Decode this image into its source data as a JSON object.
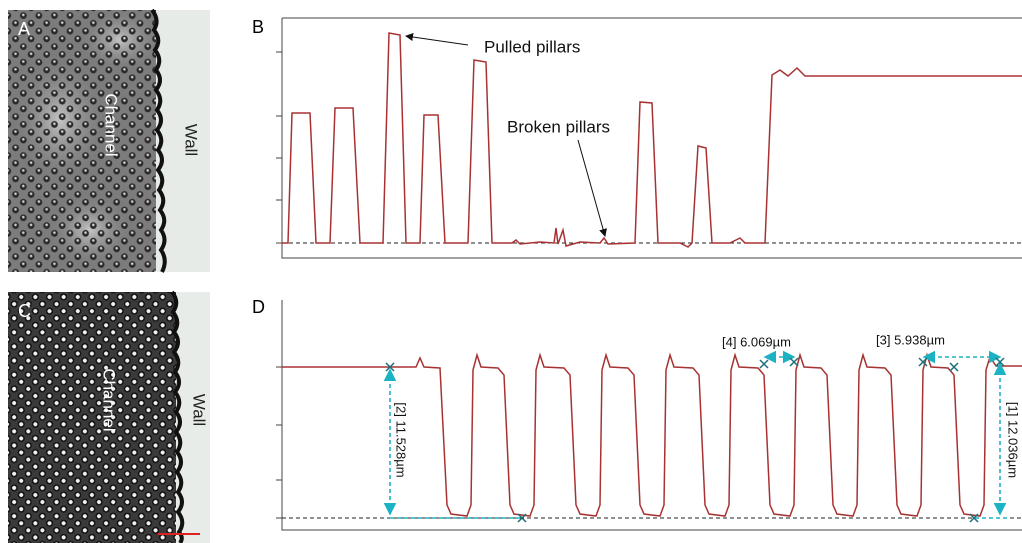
{
  "panel_a": {
    "label": "A",
    "channel": "Channel",
    "wall": "Wall"
  },
  "panel_b": {
    "label": "B",
    "annotations": [
      "Pulled pillars",
      "Broken pillars"
    ]
  },
  "panel_c": {
    "label": "C",
    "channel": "Channel",
    "wall": "Wall"
  },
  "panel_d": {
    "label": "D",
    "measurements": [
      "[4] 6.069µm",
      "[3] 5.938µm",
      "[2] 11.528µm",
      "[1] 12.036µm"
    ]
  }
}
